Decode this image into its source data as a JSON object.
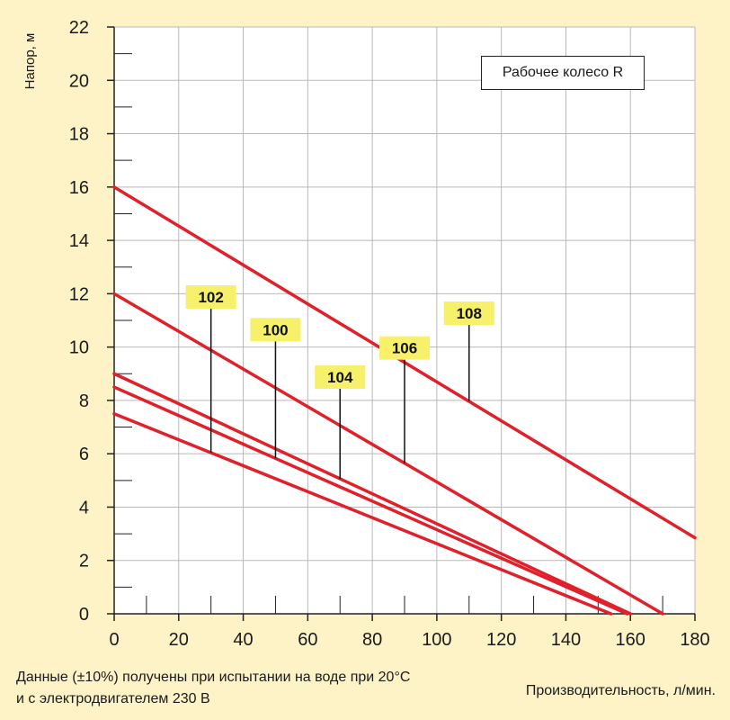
{
  "chart_data": {
    "type": "line",
    "ylabel": "Напор, м",
    "xlabel": "Производительность, л/мин.",
    "xlim": [
      0,
      180
    ],
    "ylim": [
      0,
      22
    ],
    "x_ticks": [
      0,
      20,
      40,
      60,
      80,
      100,
      120,
      140,
      160,
      180
    ],
    "y_ticks": [
      0,
      2,
      4,
      6,
      8,
      10,
      12,
      14,
      16,
      18,
      20,
      22
    ],
    "grid": true,
    "series": [
      {
        "name": "108",
        "x": [
          0,
          180
        ],
        "y": [
          16,
          2.85
        ],
        "label_x": 110
      },
      {
        "name": "106",
        "x": [
          0,
          170
        ],
        "y": [
          12,
          0
        ],
        "label_x": 90
      },
      {
        "name": "104",
        "x": [
          0,
          160
        ],
        "y": [
          9,
          0
        ],
        "label_x": 70
      },
      {
        "name": "100",
        "x": [
          0,
          159
        ],
        "y": [
          8.5,
          0
        ],
        "label_x": 50
      },
      {
        "name": "102",
        "x": [
          0,
          154
        ],
        "y": [
          7.5,
          0
        ],
        "label_x": 30
      }
    ],
    "series_color": "#e0202a",
    "label_color": "#f6f06a",
    "legend": "Рабочее колесо R",
    "legend_position": "top-right",
    "note_line1": "Данные (±10%) получены при испытании на воде при 20°C",
    "note_line2": "и с электродвигателем 230 В"
  }
}
